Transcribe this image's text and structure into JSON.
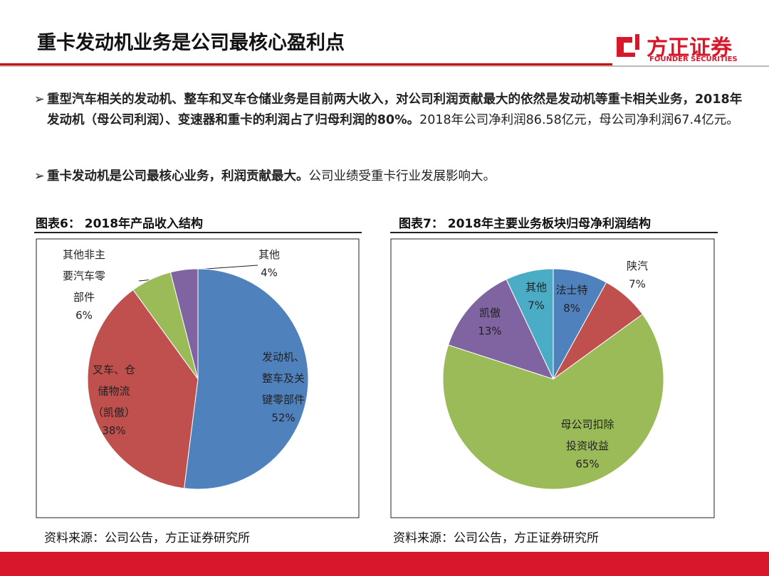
{
  "header": {
    "title": "重卡发动机业务是公司最核心盈利点",
    "logo": "方正证券",
    "logo_sub": "FOUNDER SECURITIES"
  },
  "bullets": [
    {
      "bold": "重型汽车相关的发动机、整车和叉车仓储业务是目前两大收入，对公司利润贡献最大的依然是发动机等重卡相关业务，2018年发动机（母公司利润）、变速器和重卡的利润占了归母利润的80%。",
      "normal": "2018年公司净利润86.58亿元，母公司净利润67.4亿元。"
    },
    {
      "bold": "重卡发动机是公司最核心业务，利润贡献最大。",
      "normal": "公司业绩受重卡行业发展影响大。"
    }
  ],
  "chart_data": [
    {
      "type": "pie",
      "title": "图表6： 2018年产品收入结构",
      "source": "资料来源：公司公告，方正证券研究所",
      "categories": [
        "发动机、整车及关键零部件",
        "叉车、仓储物流（凯傲）",
        "其他非主要汽车零部件",
        "其他"
      ],
      "values": [
        52,
        38,
        6,
        4
      ],
      "value_labels": [
        "52%",
        "38%",
        "6%",
        "4%"
      ],
      "colors": [
        "#4f81bd",
        "#c0504d",
        "#9bbb59",
        "#8064a2"
      ]
    },
    {
      "type": "pie",
      "title": "图表7： 2018年主要业务板块归母净利润结构",
      "source": "资料来源：公司公告，方正证券研究所",
      "categories": [
        "法士特",
        "陕汽",
        "母公司扣除投资收益",
        "凯傲",
        "其他"
      ],
      "values": [
        8,
        7,
        65,
        13,
        7
      ],
      "value_labels": [
        "8%",
        "7%",
        "65%",
        "13%",
        "7%"
      ],
      "colors": [
        "#4f81bd",
        "#c0504d",
        "#9bbb59",
        "#8064a2",
        "#4bacc6"
      ]
    }
  ]
}
